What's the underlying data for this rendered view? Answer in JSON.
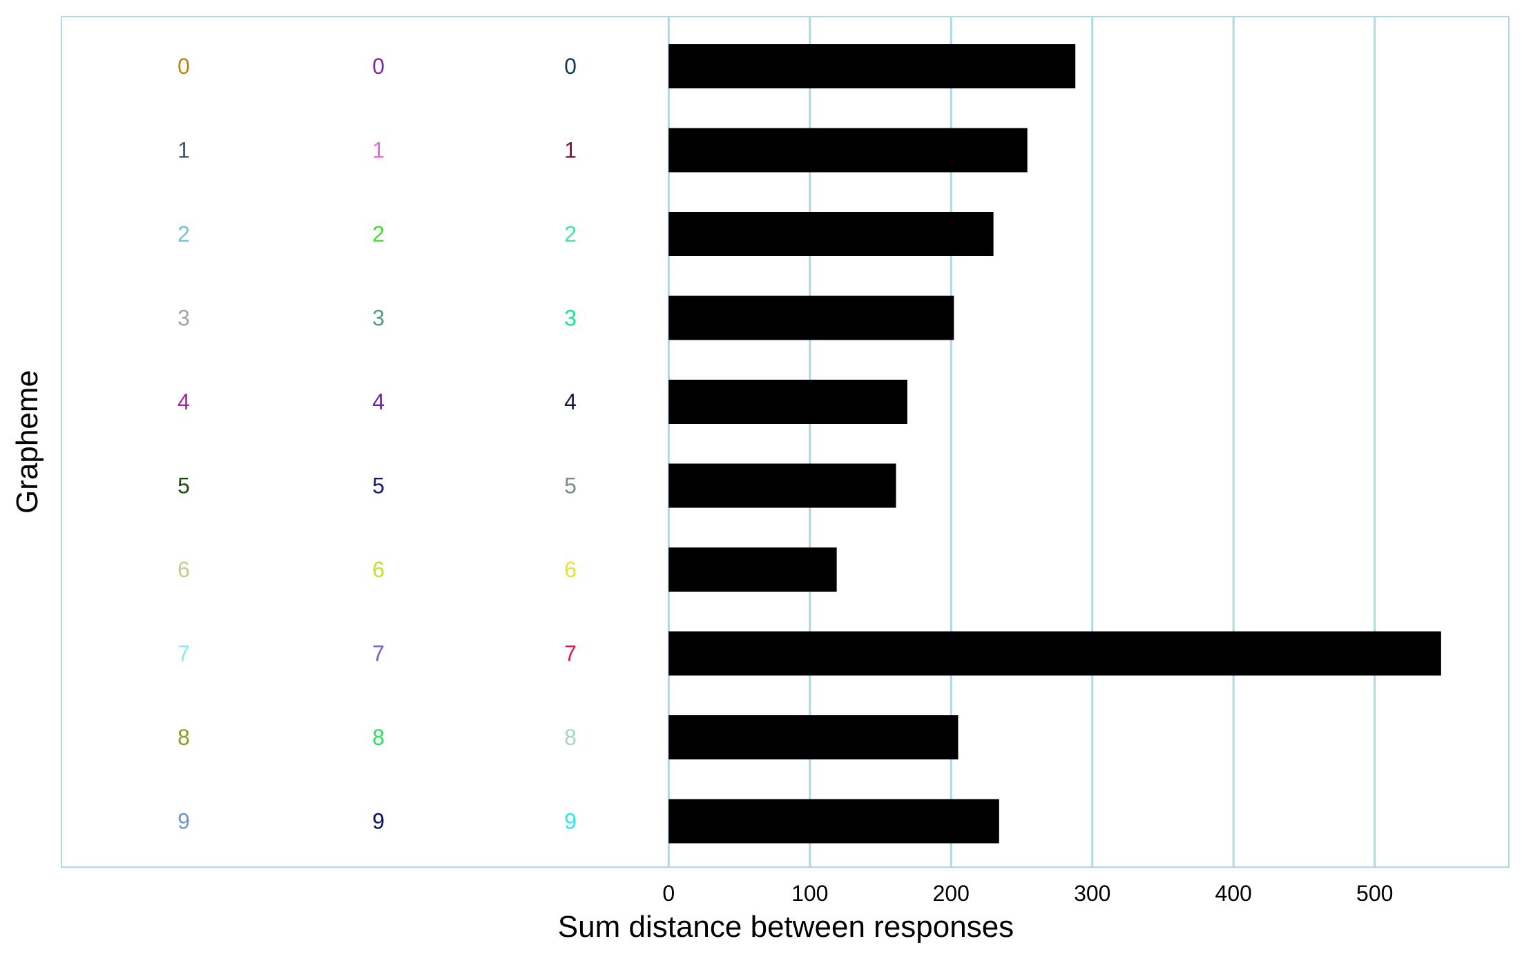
{
  "chart_data": {
    "type": "bar",
    "orientation": "horizontal",
    "xlabel": "Sum distance between responses",
    "ylabel": "Grapheme",
    "xlim": [
      -430,
      595
    ],
    "x_ticks": [
      0,
      100,
      200,
      300,
      400,
      500
    ],
    "x_tick_labels": [
      "0",
      "100",
      "200",
      "300",
      "400",
      "500"
    ],
    "grid": "vertical major gridlines",
    "categories": [
      "0",
      "1",
      "2",
      "3",
      "4",
      "5",
      "6",
      "7",
      "8",
      "9"
    ],
    "values": [
      288,
      254,
      230,
      202,
      169,
      161,
      119,
      547,
      205,
      234
    ],
    "bar_color": "#000000",
    "grid_color": "#ADD8E6",
    "panel_border_color": "#ADD8E6",
    "response_colors": [
      [
        "#B8860B",
        "#7B2C9E",
        "#0E3A5C"
      ],
      [
        "#3D5A73",
        "#F062D8",
        "#7A1232"
      ],
      [
        "#6EC4DC",
        "#45E02A",
        "#3DE8A8"
      ],
      [
        "#A3A3A3",
        "#5A9A84",
        "#14E68A"
      ],
      [
        "#9C2A9C",
        "#6A2A9E",
        "#141B3A"
      ],
      [
        "#1E4A0E",
        "#1A1A6A",
        "#7A8A8A"
      ],
      [
        "#C8CC8A",
        "#C4E22A",
        "#E8E22A"
      ],
      [
        "#7EF2EE",
        "#7060E0",
        "#F0144E"
      ],
      [
        "#84A01E",
        "#2AE060",
        "#A8D4C8"
      ],
      [
        "#7096C8",
        "#0E0E5E",
        "#2AE8F0"
      ]
    ]
  }
}
